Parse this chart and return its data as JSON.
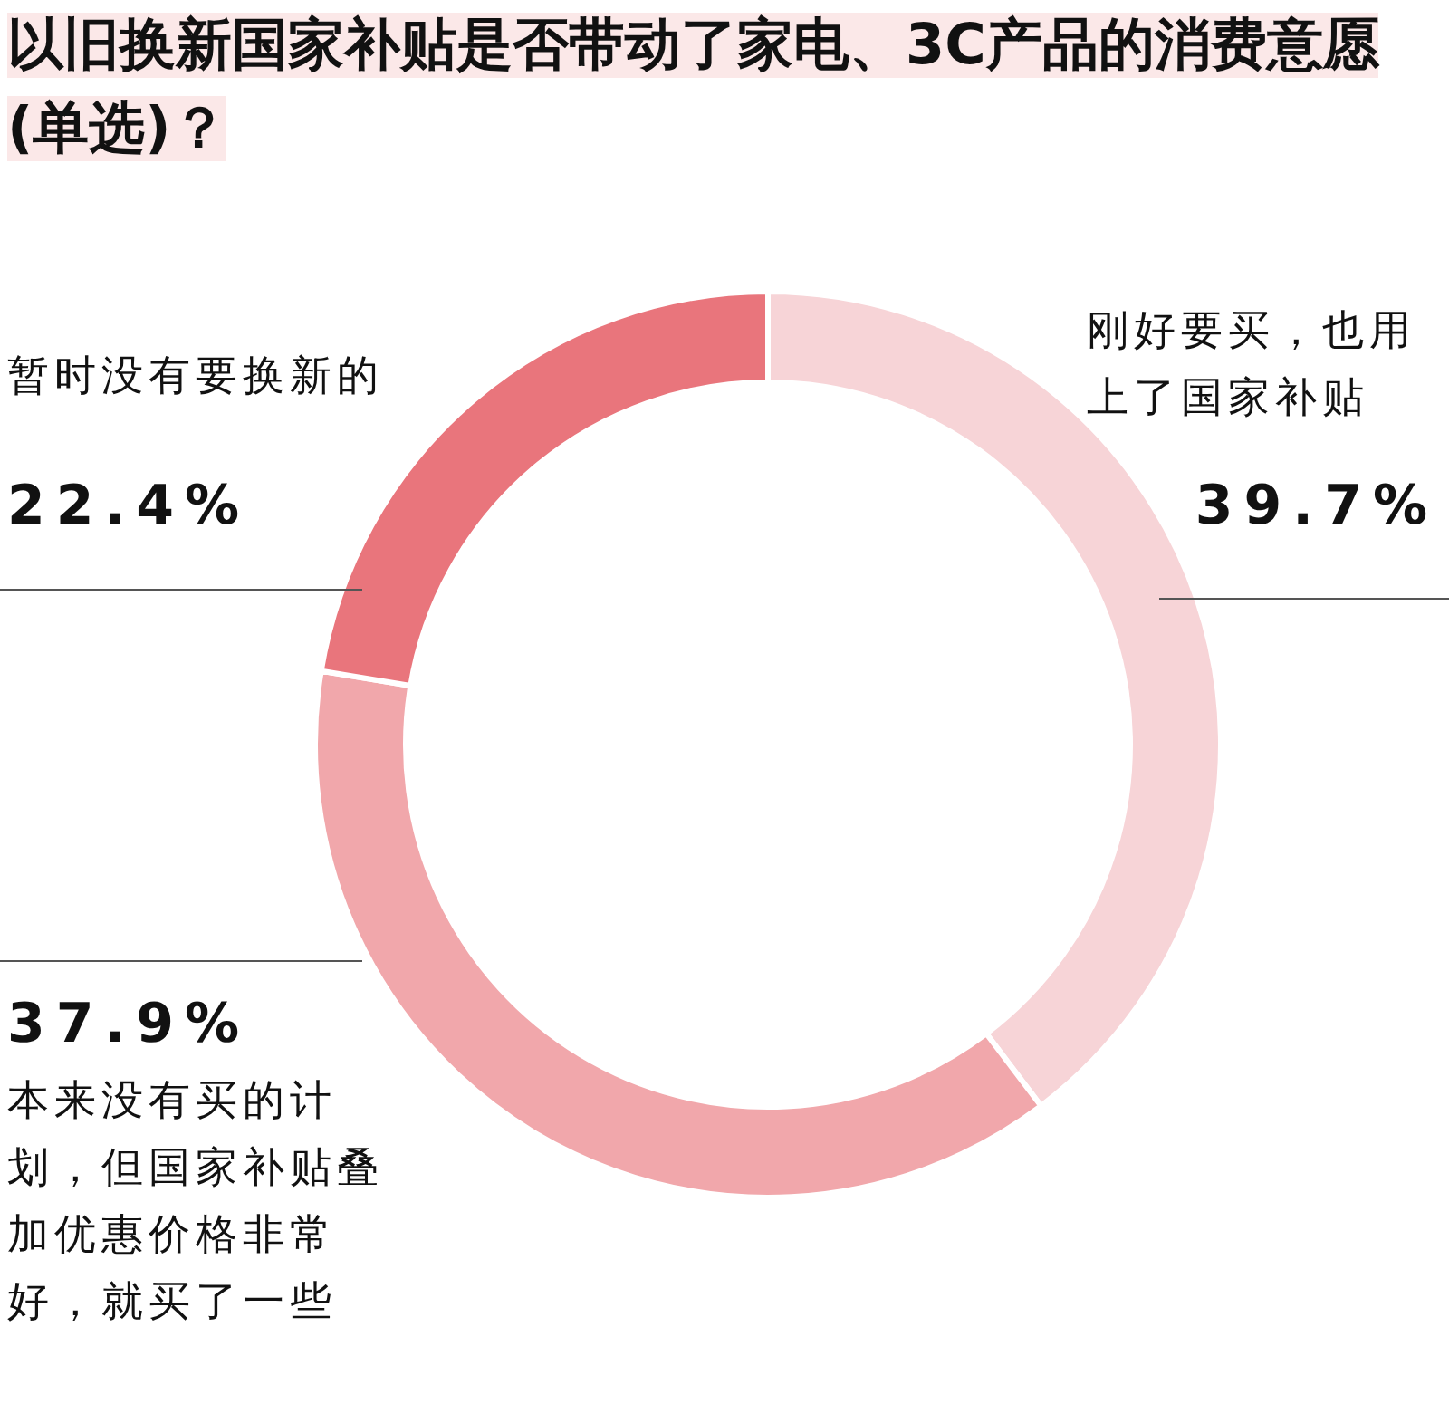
{
  "chart_data": {
    "type": "donut",
    "title": "以旧换新国家补贴是否带动了家电、3C产品的消费意愿(单选)？",
    "categories": [
      "刚好要买，也用上了国家补贴",
      "本来没有买的计划，但国家补贴叠加优惠价格非常好，就买了一些",
      "暂时没有要换新的"
    ],
    "values": [
      39.7,
      37.9,
      22.4
    ],
    "colors": [
      "#f7d4d7",
      "#f1a7ab",
      "#e9757c"
    ],
    "value_labels": [
      "39.7%",
      "37.9%",
      "22.4%"
    ],
    "legend": false
  }
}
